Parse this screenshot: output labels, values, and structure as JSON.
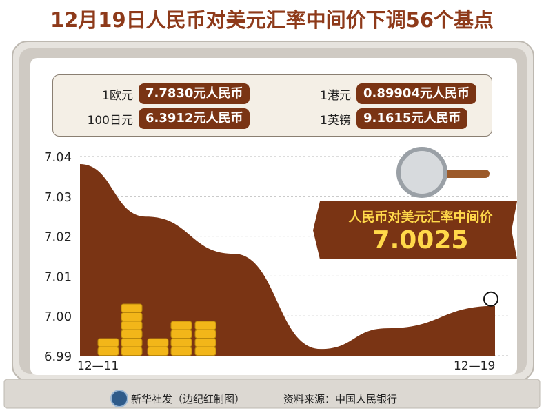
{
  "title": "12月19日人民币对美元汇率中间价下调56个基点",
  "rates": [
    {
      "label": "1欧元",
      "value": "7.7830元人民币"
    },
    {
      "label": "1港元",
      "value": "0.89904元人民币"
    },
    {
      "label": "100日元",
      "value": "6.3912元人民币"
    },
    {
      "label": "1英镑",
      "value": "9.1615元人民币"
    }
  ],
  "callout": {
    "label": "人民币对美元汇率中间价",
    "value": "7.0025"
  },
  "footer": {
    "agency": "新华社发（边纪红制图）",
    "source": "资料来源：中国人民银行"
  },
  "colors": {
    "title": "#8e3a1a",
    "area": "#7a3414",
    "coin": "#f2b619",
    "board": "#d9d5cf",
    "callout_text": "#ffd84a"
  },
  "chart_data": {
    "type": "area",
    "x_start_label": "12—11",
    "x_end_label": "12—19",
    "yticks": [
      "7.04",
      "7.03",
      "7.02",
      "7.01",
      "7.00",
      "6.99"
    ],
    "ylim": [
      6.99,
      7.04
    ],
    "grid": true,
    "series": [
      {
        "x": [
          0,
          0.16,
          0.37,
          0.58,
          0.74,
          1.0
        ],
        "values": [
          7.0381,
          7.0249,
          7.0156,
          6.9917,
          6.9969,
          7.0025
        ]
      }
    ],
    "highlight_point": {
      "x": 1.0,
      "value": 7.0025
    }
  }
}
